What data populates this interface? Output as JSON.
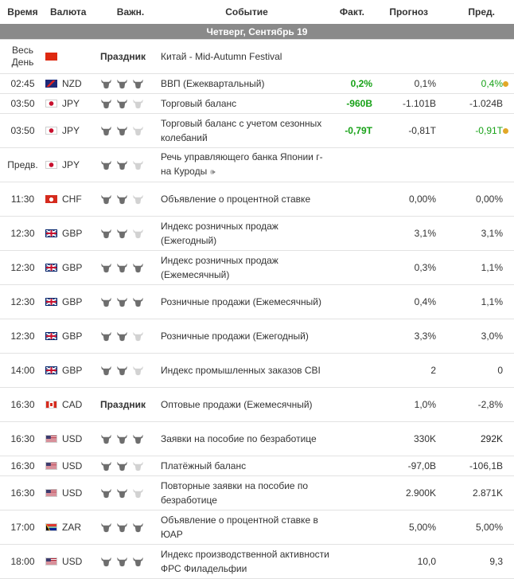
{
  "headers": {
    "time": "Время",
    "currency": "Валюта",
    "importance": "Важн.",
    "event": "Событие",
    "actual": "Факт.",
    "forecast": "Прогноз",
    "previous": "Пред."
  },
  "day_label": "Четверг, Сентябрь 19",
  "colors": {
    "positive": "#18a218",
    "revised_dot": "#e2a727",
    "day_bar": "#8a8a8a"
  },
  "rows": [
    {
      "time": "Весь День",
      "currency": "",
      "flag": "cn",
      "holiday": "Праздник",
      "importance": 0,
      "event": "Китай - Mid-Autumn Festival",
      "actual": "",
      "forecast": "",
      "previous": "",
      "actual_color": "",
      "previous_color": "",
      "dot": false,
      "speech": false
    },
    {
      "time": "02:45",
      "currency": "NZD",
      "flag": "nz",
      "holiday": "",
      "importance": 3,
      "event": "ВВП (Ежеквартальный)",
      "actual": "0,2%",
      "forecast": "0,1%",
      "previous": "0,4%",
      "actual_color": "green",
      "previous_color": "green",
      "dot": true,
      "speech": false
    },
    {
      "time": "03:50",
      "currency": "JPY",
      "flag": "jp",
      "holiday": "",
      "importance": 2,
      "event": "Торговый баланс",
      "actual": "-960B",
      "forecast": "-1.101B",
      "previous": "-1.024B",
      "actual_color": "green",
      "previous_color": "",
      "dot": false,
      "speech": false
    },
    {
      "time": "03:50",
      "currency": "JPY",
      "flag": "jp",
      "holiday": "",
      "importance": 2,
      "event": "Торговый баланс с учетом сезонных колебаний",
      "actual": "-0,79T",
      "forecast": "-0,81T",
      "previous": "-0,91T",
      "actual_color": "green",
      "previous_color": "green",
      "dot": true,
      "speech": false
    },
    {
      "time": "Предв.",
      "currency": "JPY",
      "flag": "jp",
      "holiday": "",
      "importance": 2,
      "event": "Речь управляющего банка Японии г-на Куроды",
      "actual": "",
      "forecast": "",
      "previous": "",
      "actual_color": "",
      "previous_color": "",
      "dot": false,
      "speech": true
    },
    {
      "time": "11:30",
      "currency": "CHF",
      "flag": "ch",
      "holiday": "",
      "importance": 2,
      "event": "Объявление о процентной ставке",
      "actual": "",
      "forecast": "0,00%",
      "previous": "0,00%",
      "actual_color": "",
      "previous_color": "",
      "dot": false,
      "speech": false
    },
    {
      "time": "12:30",
      "currency": "GBP",
      "flag": "gb",
      "holiday": "",
      "importance": 2,
      "event": "Индекс розничных продаж (Ежегодный)",
      "actual": "",
      "forecast": "3,1%",
      "previous": "3,1%",
      "actual_color": "",
      "previous_color": "",
      "dot": false,
      "speech": false
    },
    {
      "time": "12:30",
      "currency": "GBP",
      "flag": "gb",
      "holiday": "",
      "importance": 3,
      "event": "Индекс розничных продаж (Ежемесячный)",
      "actual": "",
      "forecast": "0,3%",
      "previous": "1,1%",
      "actual_color": "",
      "previous_color": "",
      "dot": false,
      "speech": false
    },
    {
      "time": "12:30",
      "currency": "GBP",
      "flag": "gb",
      "holiday": "",
      "importance": 3,
      "event": "Розничные продажи (Ежемесячный)",
      "actual": "",
      "forecast": "0,4%",
      "previous": "1,1%",
      "actual_color": "",
      "previous_color": "",
      "dot": false,
      "speech": false
    },
    {
      "time": "12:30",
      "currency": "GBP",
      "flag": "gb",
      "holiday": "",
      "importance": 2,
      "event": "Розничные продажи (Ежегодный)",
      "actual": "",
      "forecast": "3,3%",
      "previous": "3,0%",
      "actual_color": "",
      "previous_color": "",
      "dot": false,
      "speech": false
    },
    {
      "time": "14:00",
      "currency": "GBP",
      "flag": "gb",
      "holiday": "",
      "importance": 2,
      "event": "Индекс промышленных заказов CBI",
      "actual": "",
      "forecast": "2",
      "previous": "0",
      "actual_color": "",
      "previous_color": "",
      "dot": false,
      "speech": false
    },
    {
      "time": "16:30",
      "currency": "CAD",
      "flag": "ca",
      "holiday": "Праздник",
      "importance": 0,
      "event": "Оптовые продажи (Ежемесячный)",
      "actual": "",
      "forecast": "1,0%",
      "previous": "-2,8%",
      "actual_color": "",
      "previous_color": "",
      "dot": false,
      "speech": false
    },
    {
      "time": "16:30",
      "currency": "USD",
      "flag": "us",
      "holiday": "",
      "importance": 3,
      "event": "Заявки на пособие по безработице",
      "actual": "",
      "forecast": "330K",
      "previous": "292K",
      "actual_color": "",
      "previous_color": "bold",
      "dot": false,
      "speech": false
    },
    {
      "time": "16:30",
      "currency": "USD",
      "flag": "us",
      "holiday": "",
      "importance": 2,
      "event": "Платёжный баланс",
      "actual": "",
      "forecast": "-97,0B",
      "previous": "-106,1B",
      "actual_color": "",
      "previous_color": "",
      "dot": false,
      "speech": false
    },
    {
      "time": "16:30",
      "currency": "USD",
      "flag": "us",
      "holiday": "",
      "importance": 2,
      "event": "Повторные заявки на пособие по безработице",
      "actual": "",
      "forecast": "2.900K",
      "previous": "2.871K",
      "actual_color": "",
      "previous_color": "",
      "dot": false,
      "speech": false
    },
    {
      "time": "17:00",
      "currency": "ZAR",
      "flag": "za",
      "holiday": "",
      "importance": 3,
      "event": "Объявление о процентной ставке в ЮАР",
      "actual": "",
      "forecast": "5,00%",
      "previous": "5,00%",
      "actual_color": "",
      "previous_color": "",
      "dot": false,
      "speech": false
    },
    {
      "time": "18:00",
      "currency": "USD",
      "flag": "us",
      "holiday": "",
      "importance": 3,
      "event": "Индекс производственной активности ФРС Филадельфии",
      "actual": "",
      "forecast": "10,0",
      "previous": "9,3",
      "actual_color": "",
      "previous_color": "",
      "dot": false,
      "speech": false
    }
  ]
}
